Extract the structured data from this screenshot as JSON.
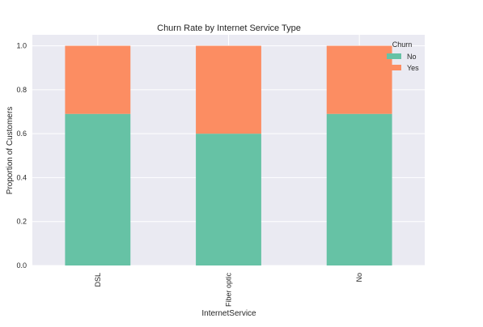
{
  "chart_data": {
    "type": "bar",
    "stacked": true,
    "title": "Churn Rate by Internet Service Type",
    "xlabel": "InternetService",
    "ylabel": "Proportion of Customers",
    "categories": [
      "DSL",
      "Fiber optic",
      "No"
    ],
    "series": [
      {
        "name": "No",
        "values": [
          0.69,
          0.6,
          0.69
        ],
        "color": "#66c2a5"
      },
      {
        "name": "Yes",
        "values": [
          0.31,
          0.4,
          0.31
        ],
        "color": "#fc8d62"
      }
    ],
    "ylim": [
      0,
      1.05
    ],
    "yticks": [
      0.0,
      0.2,
      0.4,
      0.6,
      0.8,
      1.0
    ],
    "ytick_labels": [
      "0.0",
      "0.2",
      "0.4",
      "0.6",
      "0.8",
      "1.0"
    ],
    "legend": {
      "title": "Churn",
      "placement": "top-right"
    },
    "grid": true,
    "background": "#eaeaf2"
  }
}
